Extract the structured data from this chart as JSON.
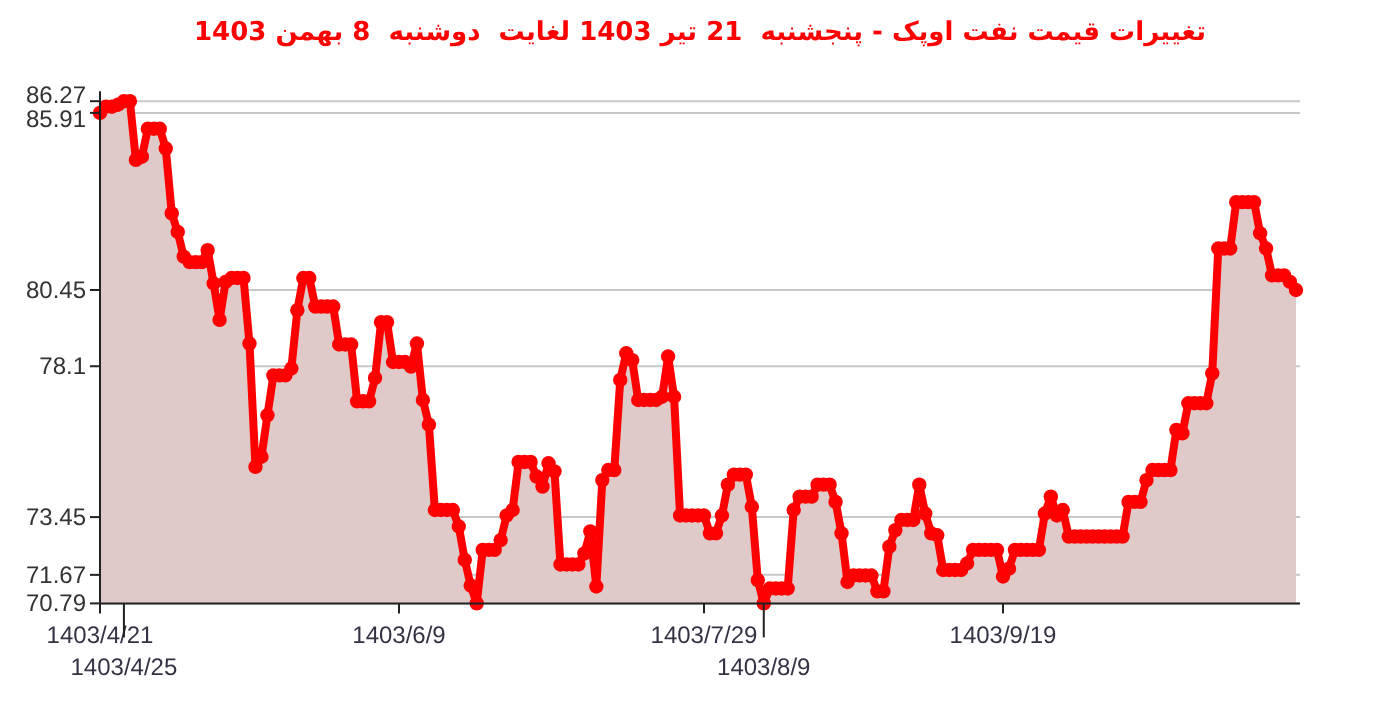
{
  "chart_data": {
    "type": "area",
    "title": "تغییرات قیمت نفت اوپک - پنجشنبه  21 تیر 1403 لغایت  دوشنبه  8 بهمن 1403",
    "categories": [
      "1403/4/21",
      null,
      null,
      null,
      "1403/4/25",
      null,
      null,
      null,
      null,
      null,
      null,
      null,
      null,
      null,
      null,
      null,
      null,
      null,
      null,
      null,
      null,
      null,
      null,
      null,
      null,
      null,
      null,
      null,
      null,
      null,
      null,
      null,
      null,
      null,
      null,
      null,
      null,
      null,
      null,
      null,
      null,
      null,
      null,
      null,
      null,
      null,
      null,
      null,
      null,
      null,
      "1403/6/9",
      null,
      null,
      null,
      null,
      null,
      null,
      null,
      null,
      null,
      null,
      null,
      null,
      null,
      null,
      null,
      null,
      null,
      null,
      null,
      null,
      null,
      null,
      null,
      null,
      null,
      null,
      null,
      null,
      null,
      null,
      null,
      null,
      null,
      null,
      null,
      null,
      null,
      null,
      null,
      null,
      null,
      null,
      null,
      null,
      null,
      null,
      null,
      null,
      null,
      null,
      "1403/7/29",
      null,
      null,
      null,
      null,
      null,
      null,
      null,
      null,
      null,
      "1403/8/9",
      null,
      null,
      null,
      null,
      null,
      null,
      null,
      null,
      null,
      null,
      null,
      null,
      null,
      null,
      null,
      null,
      null,
      null,
      null,
      null,
      null,
      null,
      null,
      null,
      null,
      null,
      null,
      null,
      null,
      null,
      null,
      null,
      null,
      null,
      null,
      null,
      null,
      null,
      null,
      "1403/9/19",
      null,
      null,
      null,
      null,
      null,
      null,
      null,
      null,
      null,
      null,
      null,
      null,
      null,
      null,
      null,
      null,
      null,
      null,
      null,
      null,
      null,
      null,
      null,
      null,
      null,
      null,
      null,
      null,
      null,
      null,
      null,
      null,
      null,
      null,
      null,
      null,
      null,
      null,
      null,
      null,
      null,
      null,
      null,
      null,
      null,
      null,
      null,
      null,
      null
    ],
    "series": [
      {
        "color": "#ff0000",
        "values": [
          85.91,
          86.1,
          86.1,
          86.16,
          86.27,
          86.27,
          84.46,
          84.56,
          85.42,
          85.42,
          85.42,
          84.81,
          82.81,
          82.24,
          81.48,
          81.31,
          81.31,
          81.31,
          81.68,
          80.65,
          79.53,
          80.7,
          80.82,
          80.82,
          80.82,
          78.8,
          75.0,
          75.31,
          76.59,
          77.82,
          77.82,
          77.82,
          78.03,
          79.83,
          80.82,
          80.82,
          79.94,
          79.94,
          79.94,
          79.94,
          78.77,
          78.77,
          78.77,
          77.02,
          77.02,
          77.02,
          77.74,
          79.46,
          79.46,
          78.23,
          78.23,
          78.23,
          78.09,
          78.8,
          77.06,
          76.3,
          73.67,
          73.67,
          73.67,
          73.67,
          73.16,
          72.13,
          71.34,
          70.79,
          72.44,
          72.44,
          72.44,
          72.74,
          73.5,
          73.67,
          75.15,
          75.15,
          75.15,
          74.7,
          74.39,
          75.11,
          74.86,
          71.99,
          71.99,
          71.99,
          71.99,
          72.33,
          73.01,
          71.31,
          74.59,
          74.9,
          74.9,
          77.68,
          78.5,
          78.29,
          77.06,
          77.06,
          77.06,
          77.06,
          77.16,
          78.4,
          77.16,
          73.5,
          73.5,
          73.5,
          73.5,
          73.5,
          72.95,
          72.95,
          73.5,
          74.45,
          74.76,
          74.76,
          74.76,
          73.77,
          71.51,
          70.79,
          71.25,
          71.25,
          71.25,
          71.25,
          73.67,
          74.08,
          74.08,
          74.08,
          74.45,
          74.45,
          74.45,
          73.92,
          72.95,
          71.45,
          71.65,
          71.65,
          71.65,
          71.65,
          71.16,
          71.16,
          72.54,
          73.05,
          73.36,
          73.36,
          73.36,
          74.45,
          73.56,
          72.95,
          72.89,
          71.82,
          71.82,
          71.82,
          71.82,
          72.02,
          72.44,
          72.44,
          72.44,
          72.44,
          72.44,
          71.62,
          71.86,
          72.44,
          72.44,
          72.44,
          72.44,
          72.44,
          73.56,
          74.08,
          73.5,
          73.67,
          72.85,
          72.85,
          72.85,
          72.85,
          72.85,
          72.85,
          72.85,
          72.85,
          72.85,
          72.85,
          73.92,
          73.92,
          73.92,
          74.59,
          74.9,
          74.9,
          74.9,
          74.9,
          76.14,
          76.03,
          76.96,
          76.96,
          76.96,
          76.96,
          77.88,
          81.73,
          81.73,
          81.73,
          83.16,
          83.16,
          83.16,
          83.16,
          82.2,
          81.73,
          80.9,
          80.9,
          80.9,
          80.7,
          80.45
        ]
      }
    ],
    "ylim": [
      70.79,
      86.27
    ],
    "yticks": [
      70.79,
      71.67,
      73.45,
      78.1,
      80.45,
      85.91,
      86.27
    ],
    "grid": "y",
    "marker": "circle",
    "line_style": "solid"
  }
}
